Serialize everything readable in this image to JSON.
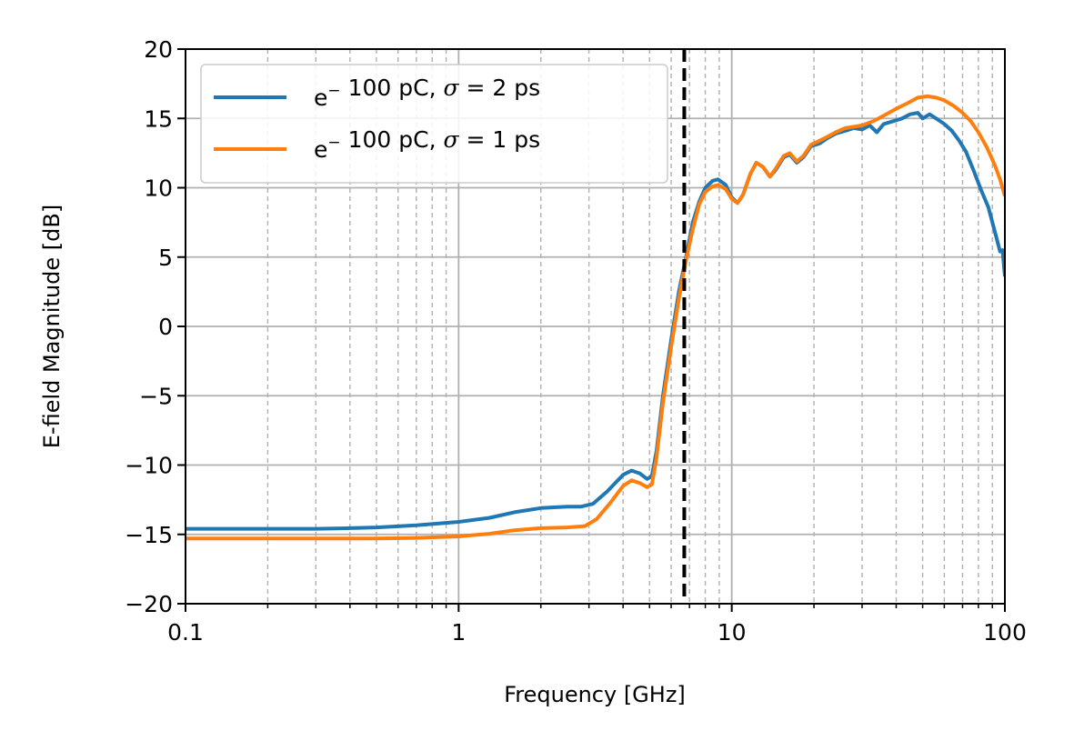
{
  "chart_data": {
    "type": "line",
    "xlabel": "Frequency [GHz]",
    "ylabel": "E-field Magnitude [dB]",
    "xscale": "log",
    "xlim": [
      0.1,
      100
    ],
    "ylim": [
      -20,
      20
    ],
    "x_ticks": [
      0.1,
      1,
      10,
      100
    ],
    "x_tick_labels": [
      "0.1",
      "1",
      "10",
      "100"
    ],
    "y_ticks": [
      -20,
      -15,
      -10,
      -5,
      0,
      5,
      10,
      15,
      20
    ],
    "y_tick_labels": [
      "−20",
      "−15",
      "−10",
      "−5",
      "0",
      "5",
      "10",
      "15",
      "20"
    ],
    "grid": true,
    "legend_position": "top-left",
    "vertical_line": {
      "x": 6.7,
      "style": "dashed",
      "color": "#000000"
    },
    "series": [
      {
        "name": "e⁻ 100 pC, σ = 2 ps",
        "legend": {
          "prefix": "e",
          "sup": "−",
          "mid": " 100 pC, ",
          "sym": "σ",
          "suffix": " = 2 ps"
        },
        "color": "#1f77b4",
        "points": [
          [
            0.1,
            -14.6
          ],
          [
            0.2,
            -14.6
          ],
          [
            0.3,
            -14.6
          ],
          [
            0.4,
            -14.55
          ],
          [
            0.5,
            -14.5
          ],
          [
            0.7,
            -14.35
          ],
          [
            1.0,
            -14.1
          ],
          [
            1.3,
            -13.8
          ],
          [
            1.6,
            -13.4
          ],
          [
            2.0,
            -13.1
          ],
          [
            2.5,
            -13.0
          ],
          [
            2.8,
            -13.0
          ],
          [
            3.1,
            -12.8
          ],
          [
            3.5,
            -11.9
          ],
          [
            4.0,
            -10.7
          ],
          [
            4.3,
            -10.4
          ],
          [
            4.6,
            -10.6
          ],
          [
            4.9,
            -11.0
          ],
          [
            5.1,
            -10.8
          ],
          [
            5.3,
            -9.0
          ],
          [
            5.6,
            -5.0
          ],
          [
            6.0,
            -1.0
          ],
          [
            6.4,
            2.5
          ],
          [
            6.8,
            5.0
          ],
          [
            7.2,
            7.5
          ],
          [
            7.6,
            9.0
          ],
          [
            8.0,
            10.0
          ],
          [
            8.5,
            10.5
          ],
          [
            8.9,
            10.6
          ],
          [
            9.5,
            10.2
          ],
          [
            10.0,
            9.3
          ],
          [
            10.5,
            8.9
          ],
          [
            11.0,
            9.5
          ],
          [
            11.7,
            11.0
          ],
          [
            12.3,
            11.8
          ],
          [
            13.0,
            11.5
          ],
          [
            13.8,
            10.8
          ],
          [
            14.5,
            11.3
          ],
          [
            15.5,
            12.2
          ],
          [
            16.3,
            12.4
          ],
          [
            17.3,
            11.8
          ],
          [
            18.3,
            12.2
          ],
          [
            19.5,
            13.0
          ],
          [
            21.0,
            13.2
          ],
          [
            22.5,
            13.6
          ],
          [
            24.0,
            13.9
          ],
          [
            26.0,
            14.1
          ],
          [
            28.0,
            14.3
          ],
          [
            30.0,
            14.2
          ],
          [
            32.0,
            14.5
          ],
          [
            34.0,
            14.0
          ],
          [
            36.0,
            14.6
          ],
          [
            39.0,
            14.8
          ],
          [
            42.0,
            15.0
          ],
          [
            45.0,
            15.3
          ],
          [
            48.0,
            15.4
          ],
          [
            50.0,
            15.0
          ],
          [
            53.0,
            15.3
          ],
          [
            56.0,
            15.0
          ],
          [
            60.0,
            14.6
          ],
          [
            64.0,
            14.1
          ],
          [
            68.0,
            13.4
          ],
          [
            72.0,
            12.6
          ],
          [
            77.0,
            11.2
          ],
          [
            82.0,
            9.8
          ],
          [
            87.0,
            8.6
          ],
          [
            92.0,
            6.8
          ],
          [
            96.0,
            5.4
          ],
          [
            98.0,
            5.5
          ],
          [
            100.0,
            3.6
          ]
        ]
      },
      {
        "name": "e⁻ 100 pC, σ = 1 ps",
        "legend": {
          "prefix": "e",
          "sup": "−",
          "mid": " 100 pC, ",
          "sym": "σ",
          "suffix": " = 1 ps"
        },
        "color": "#ff7f0e",
        "points": [
          [
            0.1,
            -15.3
          ],
          [
            0.2,
            -15.3
          ],
          [
            0.3,
            -15.3
          ],
          [
            0.5,
            -15.3
          ],
          [
            0.7,
            -15.25
          ],
          [
            1.0,
            -15.15
          ],
          [
            1.3,
            -14.95
          ],
          [
            1.6,
            -14.7
          ],
          [
            2.0,
            -14.55
          ],
          [
            2.5,
            -14.5
          ],
          [
            2.9,
            -14.4
          ],
          [
            3.2,
            -13.9
          ],
          [
            3.6,
            -12.7
          ],
          [
            4.0,
            -11.5
          ],
          [
            4.3,
            -11.1
          ],
          [
            4.6,
            -11.3
          ],
          [
            4.9,
            -11.6
          ],
          [
            5.1,
            -11.4
          ],
          [
            5.3,
            -9.5
          ],
          [
            5.6,
            -5.5
          ],
          [
            6.0,
            -1.5
          ],
          [
            6.4,
            2.0
          ],
          [
            6.8,
            4.8
          ],
          [
            7.2,
            7.0
          ],
          [
            7.6,
            8.8
          ],
          [
            8.0,
            9.7
          ],
          [
            8.5,
            10.1
          ],
          [
            8.9,
            10.2
          ],
          [
            9.5,
            9.9
          ],
          [
            10.0,
            9.2
          ],
          [
            10.5,
            8.9
          ],
          [
            11.0,
            9.5
          ],
          [
            11.7,
            11.0
          ],
          [
            12.3,
            11.8
          ],
          [
            13.0,
            11.5
          ],
          [
            13.8,
            10.8
          ],
          [
            14.5,
            11.4
          ],
          [
            15.5,
            12.3
          ],
          [
            16.3,
            12.5
          ],
          [
            17.3,
            11.9
          ],
          [
            18.3,
            12.3
          ],
          [
            19.5,
            13.1
          ],
          [
            21.0,
            13.4
          ],
          [
            22.5,
            13.7
          ],
          [
            24.0,
            14.0
          ],
          [
            26.0,
            14.3
          ],
          [
            28.0,
            14.4
          ],
          [
            30.0,
            14.5
          ],
          [
            33.0,
            14.8
          ],
          [
            36.0,
            15.2
          ],
          [
            40.0,
            15.7
          ],
          [
            44.0,
            16.1
          ],
          [
            48.0,
            16.5
          ],
          [
            52.0,
            16.6
          ],
          [
            56.0,
            16.5
          ],
          [
            60.0,
            16.3
          ],
          [
            65.0,
            15.9
          ],
          [
            70.0,
            15.4
          ],
          [
            75.0,
            14.8
          ],
          [
            80.0,
            14.0
          ],
          [
            86.0,
            12.9
          ],
          [
            92.0,
            11.6
          ],
          [
            96.0,
            10.6
          ],
          [
            100.0,
            9.4
          ]
        ]
      }
    ]
  }
}
